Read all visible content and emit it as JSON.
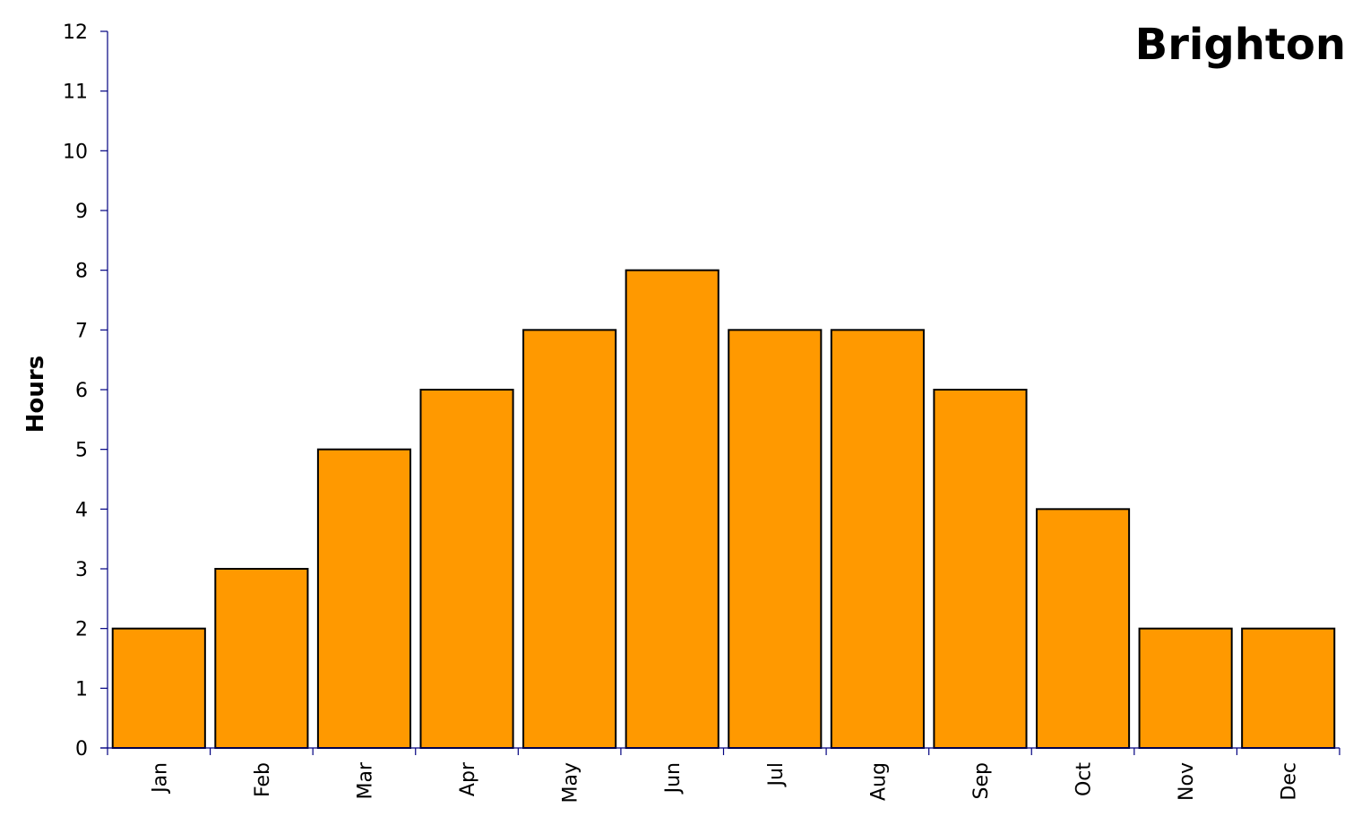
{
  "chart_data": {
    "type": "bar",
    "title": "Brighton",
    "xlabel": "",
    "ylabel": "Hours",
    "categories": [
      "Jan",
      "Feb",
      "Mar",
      "Apr",
      "May",
      "Jun",
      "Jul",
      "Aug",
      "Sep",
      "Oct",
      "Nov",
      "Dec"
    ],
    "values": [
      2,
      3,
      5,
      6,
      7,
      8,
      7,
      7,
      6,
      4,
      2,
      2
    ],
    "ylim": [
      0,
      12
    ],
    "yticks": [
      0,
      1,
      2,
      3,
      4,
      5,
      6,
      7,
      8,
      9,
      10,
      11,
      12
    ],
    "grid": false,
    "legend": "none",
    "colors": {
      "bar": "#FF9900",
      "bar_border": "#000000",
      "axis": "#000080"
    }
  }
}
